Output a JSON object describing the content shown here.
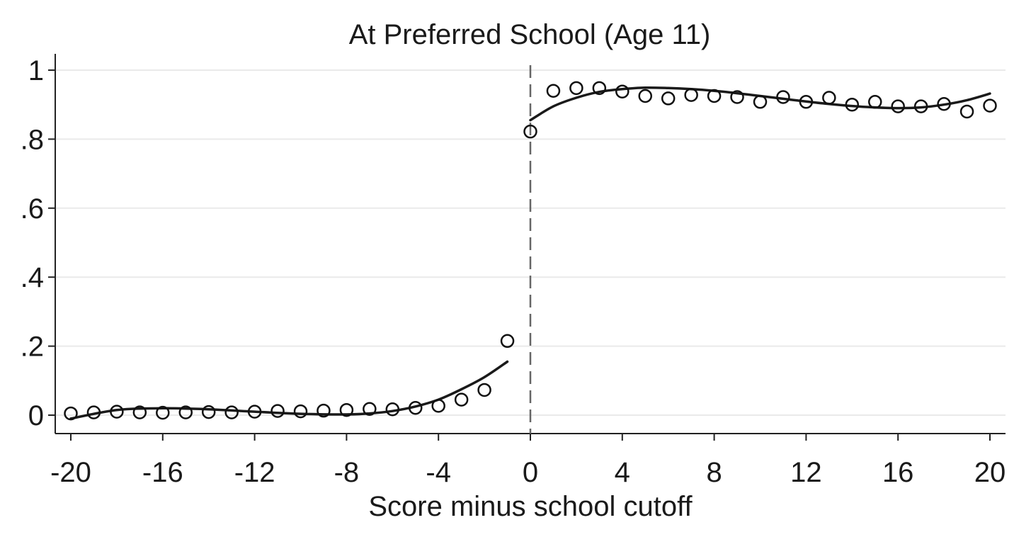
{
  "chart_data": {
    "type": "scatter",
    "title": "At Preferred School (Age 11)",
    "xlabel": "Score minus school cutoff",
    "ylabel": "",
    "xlim": [
      -20,
      20
    ],
    "ylim": [
      0,
      1
    ],
    "xticks": [
      -20,
      -16,
      -12,
      -8,
      -4,
      0,
      4,
      8,
      12,
      16,
      20
    ],
    "xtick_labels": [
      "-20",
      "-16",
      "-12",
      "-8",
      "-4",
      "0",
      "4",
      "8",
      "12",
      "16",
      "20"
    ],
    "yticks": [
      0,
      0.2,
      0.4,
      0.6,
      0.8,
      1
    ],
    "ytick_labels": [
      "0",
      ".2",
      ".4",
      ".6",
      ".8",
      "1"
    ],
    "grid": true,
    "cutoff_x": 0,
    "points": {
      "x": [
        -20,
        -19,
        -18,
        -17,
        -16,
        -15,
        -14,
        -13,
        -12,
        -11,
        -10,
        -9,
        -8,
        -7,
        -6,
        -5,
        -4,
        -3,
        -2,
        -1,
        0,
        1,
        2,
        3,
        4,
        5,
        6,
        7,
        8,
        9,
        10,
        11,
        12,
        13,
        14,
        15,
        16,
        17,
        18,
        19,
        20
      ],
      "y": [
        0.005,
        0.008,
        0.01,
        0.008,
        0.007,
        0.008,
        0.009,
        0.008,
        0.01,
        0.012,
        0.011,
        0.013,
        0.015,
        0.018,
        0.017,
        0.021,
        0.027,
        0.045,
        0.073,
        0.215,
        0.822,
        0.94,
        0.948,
        0.948,
        0.938,
        0.925,
        0.918,
        0.928,
        0.925,
        0.922,
        0.908,
        0.922,
        0.908,
        0.92,
        0.9,
        0.908,
        0.895,
        0.895,
        0.902,
        0.88,
        0.897
      ]
    },
    "fit_left": {
      "x": [
        -20,
        -18,
        -16,
        -14,
        -12,
        -10,
        -8,
        -7,
        -6,
        -5,
        -4,
        -3,
        -2,
        -1
      ],
      "y": [
        -0.01,
        0.015,
        0.02,
        0.017,
        0.01,
        0.004,
        0.002,
        0.005,
        0.012,
        0.025,
        0.045,
        0.075,
        0.11,
        0.155
      ]
    },
    "fit_right": {
      "x": [
        0,
        1,
        2,
        3,
        4,
        5,
        6,
        7,
        8,
        9,
        10,
        11,
        12,
        13,
        14,
        15,
        16,
        17,
        18,
        19,
        20
      ],
      "y": [
        0.855,
        0.895,
        0.92,
        0.937,
        0.945,
        0.949,
        0.948,
        0.945,
        0.94,
        0.933,
        0.925,
        0.917,
        0.909,
        0.902,
        0.896,
        0.892,
        0.89,
        0.892,
        0.9,
        0.913,
        0.932
      ]
    }
  }
}
